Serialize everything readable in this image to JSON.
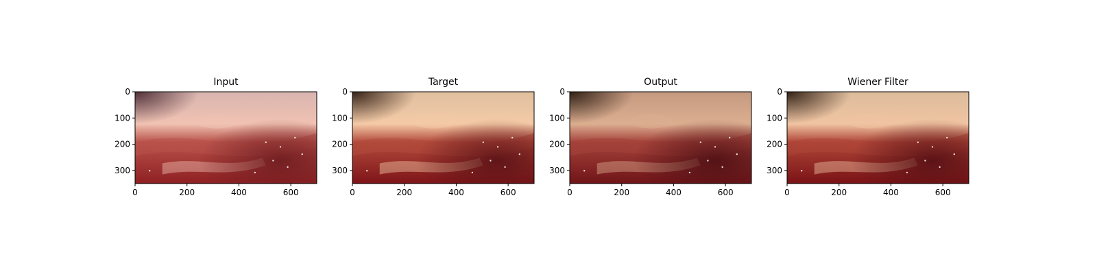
{
  "chart_data": [
    {
      "type": "image",
      "title": "Input",
      "xticks": [
        "0",
        "200",
        "400",
        "600"
      ],
      "yticks": [
        "0",
        "100",
        "200",
        "300"
      ],
      "xlim": [
        0,
        700
      ],
      "ylim": [
        350,
        0
      ],
      "tone": {
        "top": "#d9b5b0",
        "mid": "#b8524a",
        "bottom": "#8e1f22",
        "highlight": "#f0c2b2",
        "shadow": "#6e1c20",
        "corner": "#4a2a33"
      }
    },
    {
      "type": "image",
      "title": "Target",
      "xticks": [
        "0",
        "200",
        "400",
        "600"
      ],
      "yticks": [
        "0",
        "100",
        "200",
        "300"
      ],
      "xlim": [
        0,
        700
      ],
      "ylim": [
        350,
        0
      ],
      "tone": {
        "top": "#e0c0a0",
        "mid": "#b24a3c",
        "bottom": "#7e1418",
        "highlight": "#f4caa6",
        "shadow": "#5a1216",
        "corner": "#2e1a10"
      }
    },
    {
      "type": "image",
      "title": "Output",
      "xticks": [
        "0",
        "200",
        "400",
        "600"
      ],
      "yticks": [
        "0",
        "100",
        "200",
        "300"
      ],
      "xlim": [
        0,
        700
      ],
      "ylim": [
        350,
        0
      ],
      "tone": {
        "top": "#c49a80",
        "mid": "#a4423a",
        "bottom": "#701418",
        "highlight": "#dcae90",
        "shadow": "#4e1014",
        "corner": "#2a1a10"
      }
    },
    {
      "type": "image",
      "title": "Wiener Filter",
      "xticks": [
        "0",
        "200",
        "400",
        "600"
      ],
      "yticks": [
        "0",
        "100",
        "200",
        "300"
      ],
      "xlim": [
        0,
        700
      ],
      "ylim": [
        350,
        0
      ],
      "tone": {
        "top": "#dcbc9c",
        "mid": "#ae4638",
        "bottom": "#7a1216",
        "highlight": "#f0c4a2",
        "shadow": "#561014",
        "corner": "#2c1a10"
      }
    }
  ]
}
